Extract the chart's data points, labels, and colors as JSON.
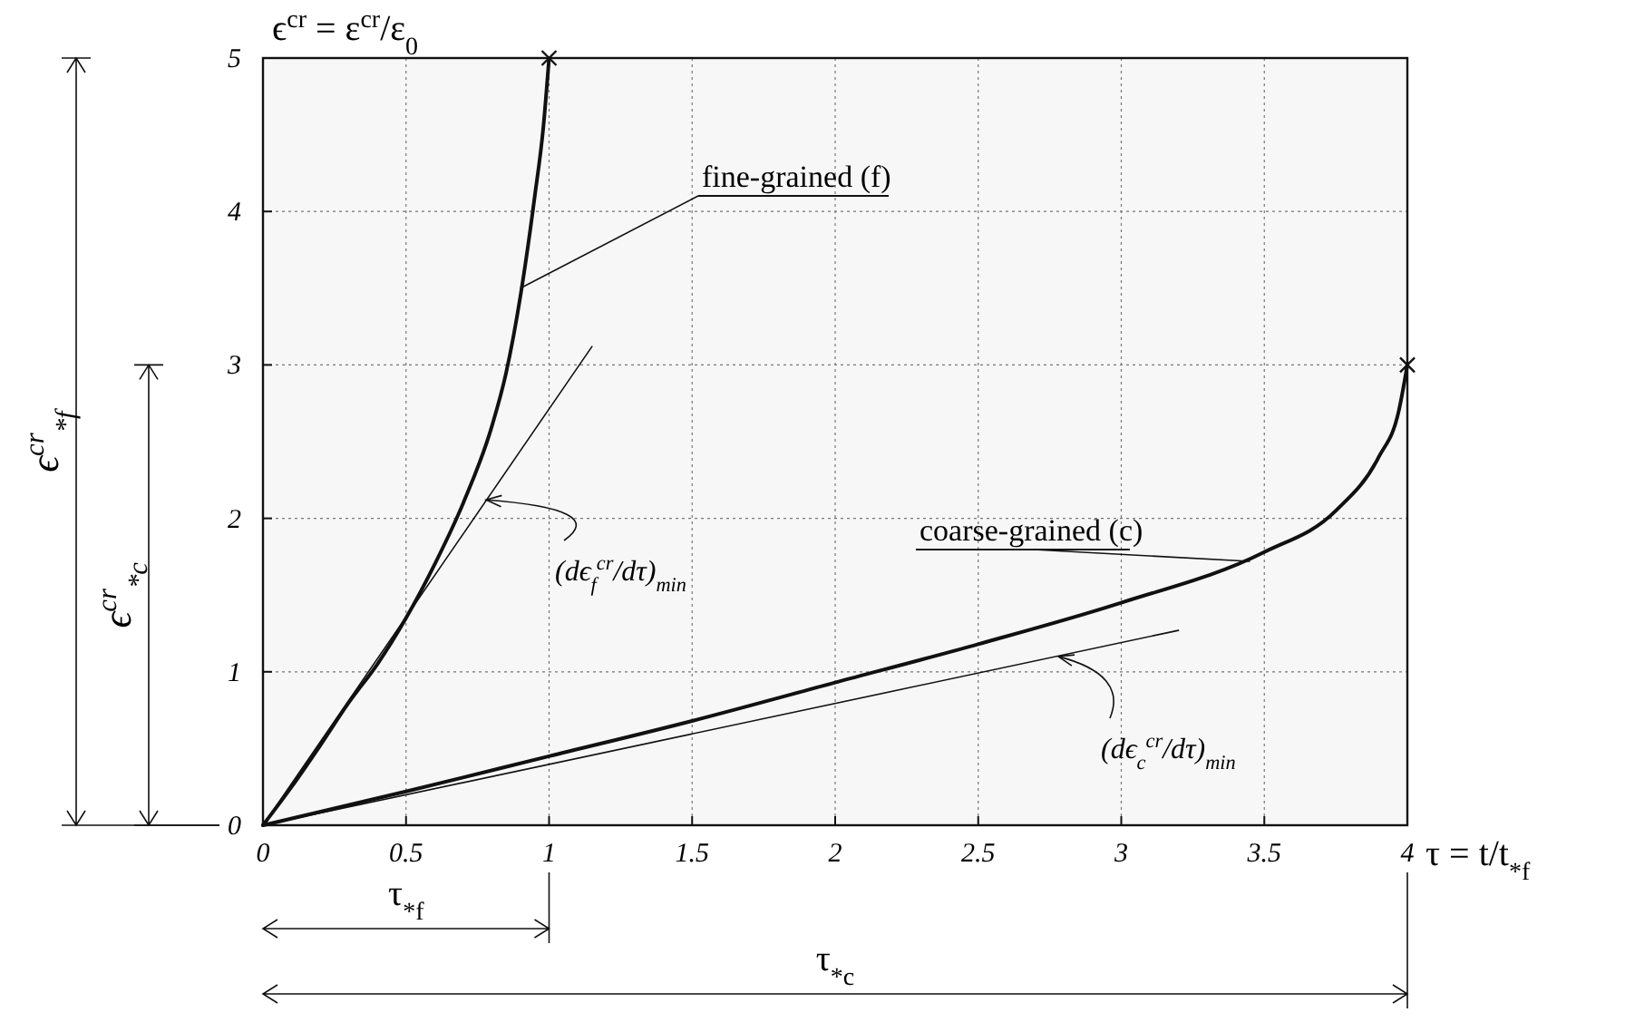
{
  "chart_data": {
    "type": "line",
    "xlabel": "τ = t/t$_{*f}$",
    "ylabel": "ϵ$^{cr}$ = ε$^{cr}$/ε$_{0}$",
    "xlim": [
      0,
      4
    ],
    "ylim": [
      0,
      5
    ],
    "xticks": [
      0,
      0.5,
      1,
      1.5,
      2,
      2.5,
      3,
      3.5,
      4
    ],
    "yticks": [
      0,
      1,
      2,
      3,
      4,
      5
    ],
    "grid": true,
    "line_style": "solid",
    "series": [
      {
        "color": "#111111",
        "x": [
          0,
          0.1,
          0.2,
          0.3,
          0.4,
          0.5,
          0.6,
          0.7,
          0.8,
          0.85,
          0.9,
          0.95,
          0.98,
          1
        ],
        "values": [
          0,
          0.25,
          0.52,
          0.8,
          1.05,
          1.35,
          1.7,
          2.1,
          2.6,
          2.95,
          3.45,
          4.1,
          4.55,
          5
        ]
      },
      {
        "color": "#111111",
        "x": [
          0,
          0.5,
          1,
          1.5,
          2,
          2.5,
          3,
          3.5,
          3.75,
          3.9,
          3.97,
          4
        ],
        "values": [
          0,
          0.22,
          0.45,
          0.68,
          0.93,
          1.18,
          1.45,
          1.78,
          2.05,
          2.4,
          2.7,
          3
        ]
      },
      {
        "color": "#111111",
        "x": [
          0,
          1.15
        ],
        "values": [
          0,
          3.12
        ]
      },
      {
        "color": "#111111",
        "x": [
          0,
          3.2
        ],
        "values": [
          0,
          1.27
        ]
      },
      {
        "type": "scatter",
        "marker": "cross",
        "color": "#111111",
        "x": [
          1,
          4
        ],
        "values": [
          5,
          3
        ]
      }
    ],
    "annotations": [
      {
        "text": "fine-grained (f)",
        "x": 0.9,
        "y": 3.5
      },
      {
        "text": "coarse-grained (c)",
        "x": 3.45,
        "y": 1.72
      },
      {
        "text": "(dϵ$_{f}$$^{cr}$/dτ)$_{min}$",
        "x": 0.78,
        "y": 2.12
      },
      {
        "text": "(dϵ$_{c}$$^{cr}$/dτ)$_{min}$",
        "x": 2.78,
        "y": 1.1
      },
      "ϵ$^{cr}$$_{*f}$",
      "ϵ$^{cr}$$_{*c}$",
      "τ$_{*f}$",
      "τ$_{*c}$"
    ]
  }
}
